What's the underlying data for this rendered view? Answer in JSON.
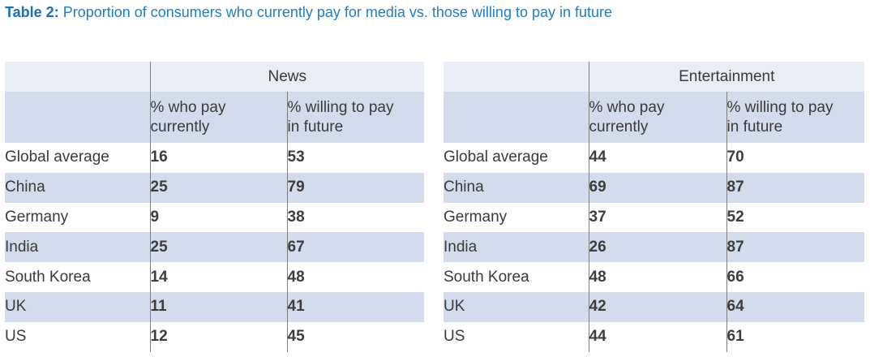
{
  "title": {
    "label": "Table 2:",
    "text": "Proportion of consumers who currently pay for media vs. those willing to pay in future"
  },
  "tables": [
    {
      "group": "News",
      "col1": [
        "% who pay",
        "currently"
      ],
      "col2": [
        "% willing to pay",
        "in future"
      ],
      "rows": [
        {
          "country": "Global average",
          "current": "16",
          "future": "53"
        },
        {
          "country": "China",
          "current": "25",
          "future": "79"
        },
        {
          "country": "Germany",
          "current": "9",
          "future": "38"
        },
        {
          "country": "India",
          "current": "25",
          "future": "67"
        },
        {
          "country": "South Korea",
          "current": "14",
          "future": "48"
        },
        {
          "country": "UK",
          "current": "11",
          "future": "41"
        },
        {
          "country": "US",
          "current": "12",
          "future": "45"
        }
      ]
    },
    {
      "group": "Entertainment",
      "col1": [
        "% who pay",
        "currently"
      ],
      "col2": [
        "% willing to pay",
        "in future"
      ],
      "rows": [
        {
          "country": "Global average",
          "current": "44",
          "future": "70"
        },
        {
          "country": "China",
          "current": "69",
          "future": "87"
        },
        {
          "country": "Germany",
          "current": "37",
          "future": "52"
        },
        {
          "country": "India",
          "current": "26",
          "future": "87"
        },
        {
          "country": "South Korea",
          "current": "48",
          "future": "66"
        },
        {
          "country": "UK",
          "current": "42",
          "future": "64"
        },
        {
          "country": "US",
          "current": "44",
          "future": "61"
        }
      ]
    }
  ],
  "colors": {
    "title_label": "#1b6fb6",
    "title_text": "#1f7fc4",
    "header_band": "#e9edf6",
    "stripe": "#d3dced"
  }
}
